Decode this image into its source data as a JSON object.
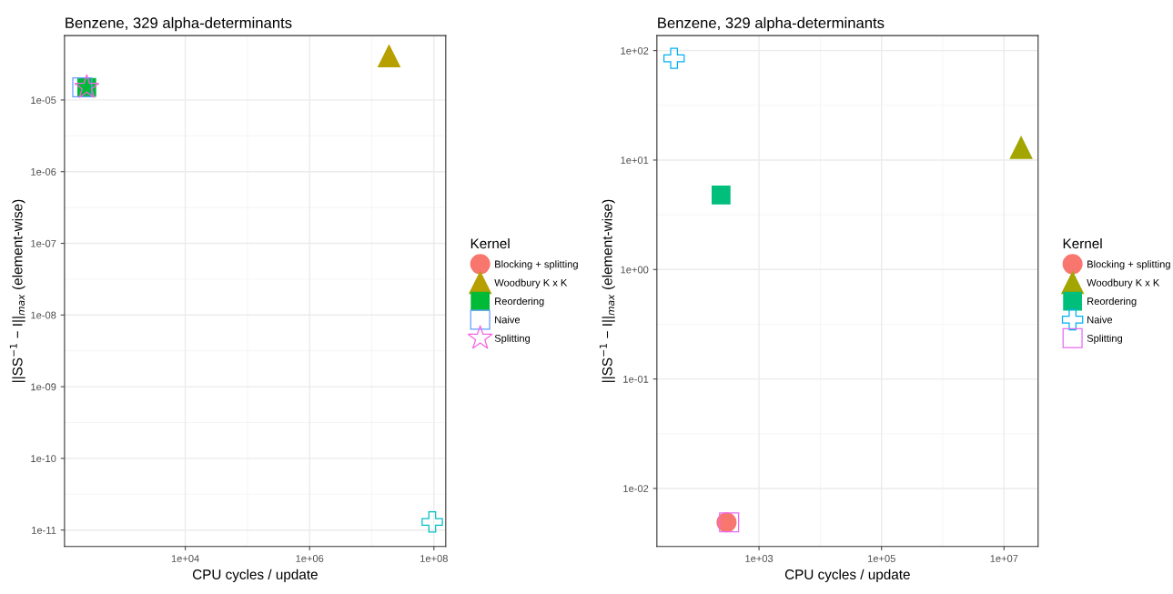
{
  "chart_data": [
    {
      "type": "scatter",
      "title": "Benzene, 329 alpha-determinants",
      "xlabel": "CPU cycles / update",
      "ylabel": "||SS$^{−1}$ − I||$_{max}$ (element-wise)",
      "legend_title": "Kernel",
      "log": "xy",
      "grid": true,
      "legend": "right",
      "xlim": [
        114,
        155000000.0
      ],
      "xticks": [
        {
          "value": 10000,
          "label": "1e+04"
        },
        {
          "value": 1000000,
          "label": "1e+06"
        },
        {
          "value": 100000000,
          "label": "1e+08"
        }
      ],
      "ylim": [
        5.9e-12,
        7.9e-05
      ],
      "yticks": [
        {
          "value": 1e-11,
          "label": "1e-11"
        },
        {
          "value": 1e-10,
          "label": "1e-10"
        },
        {
          "value": 1e-09,
          "label": "1e-09"
        },
        {
          "value": 1e-08,
          "label": "1e-08"
        },
        {
          "value": 1e-07,
          "label": "1e-07"
        },
        {
          "value": 1e-06,
          "label": "1e-06"
        },
        {
          "value": 1e-05,
          "label": "1e-05"
        }
      ],
      "series": [
        {
          "name": "Blocking + splitting",
          "color": "#f8766d",
          "marker": "circle",
          "x": [
            null
          ],
          "values": [
            null
          ]
        },
        {
          "name": "Woodbury K x K",
          "color": "#b79f00",
          "marker": "triangle",
          "x": [
            19000000.0
          ],
          "values": [
            4.1e-05
          ]
        },
        {
          "name": "Reordering",
          "color": "#00ba38",
          "marker": "square",
          "x": [
            260
          ],
          "values": [
            1.5e-05
          ]
        },
        {
          "color": "#00bfc4",
          "marker": "cross",
          "x": [
            94000000.0
          ],
          "values": [
            1.3e-11
          ]
        },
        {
          "name": "Naive",
          "color": "#619cff",
          "x": [
            220
          ],
          "values": [
            1.5e-05
          ]
        },
        {
          "name": "Splitting",
          "color": "#f564e3",
          "marker": "star",
          "x": [
            260
          ],
          "values": [
            1.5e-05
          ]
        }
      ]
    },
    {
      "type": "scatter",
      "title": "Benzene, 329 alpha-determinants",
      "xlabel": "CPU cycles / update",
      "ylabel": "||SS$^{−1}$ − I||$_{max}$ (element-wise)",
      "legend_title": "Kernel",
      "log": "xy",
      "grid": true,
      "legend": "right",
      "xlim": [
        21.5,
        36000000.0
      ],
      "xticks": [
        {
          "value": 1000,
          "label": "1e+03"
        },
        {
          "value": 100000,
          "label": "1e+05"
        },
        {
          "value": 10000000,
          "label": "1e+07"
        }
      ],
      "ylim": [
        0.00295,
        137
      ],
      "yticks": [
        {
          "value": 0.01,
          "label": "1e-02"
        },
        {
          "value": 0.1,
          "label": "1e-01"
        },
        {
          "value": 1,
          "label": "1e+00"
        },
        {
          "value": 10,
          "label": "1e+01"
        },
        {
          "value": 100,
          "label": "1e+02"
        }
      ],
      "series": [
        {
          "name": "Blocking + splitting",
          "color": "#f8766d",
          "marker": "circle",
          "x": [
            295
          ],
          "values": [
            0.0049
          ]
        },
        {
          "name": "Woodbury K x K",
          "color": "#a3a500",
          "marker": "triangle",
          "x": [
            19000000.0
          ],
          "values": [
            13
          ]
        },
        {
          "name": "Reordering",
          "color": "#00bf7d",
          "marker": "square",
          "x": [
            240
          ],
          "values": [
            4.8
          ]
        },
        {
          "name": "Naive",
          "color": "#00b0f6",
          "marker": "cross",
          "x": [
            41
          ],
          "values": [
            85
          ]
        },
        {
          "name": "Splitting",
          "color": "#e76bf3",
          "x": [
            325
          ],
          "values": [
            0.0049
          ]
        }
      ]
    }
  ]
}
